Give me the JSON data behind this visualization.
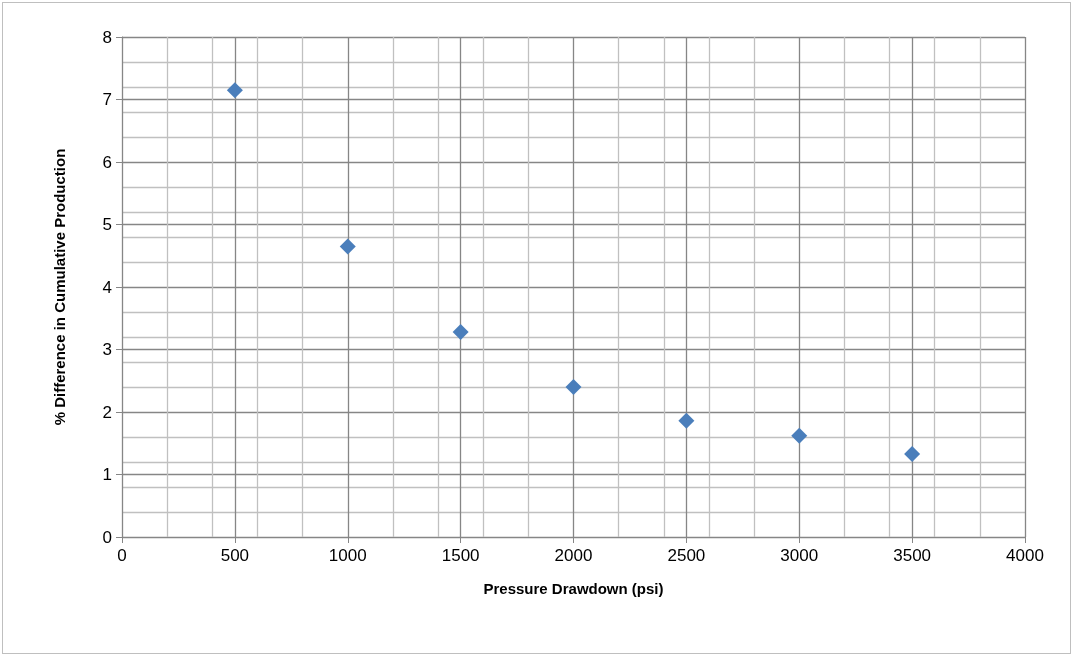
{
  "chart_data": {
    "type": "scatter",
    "xlabel": "Pressure Drawdown (psi)",
    "ylabel": "% Difference in Cumulative Production",
    "x": [
      500,
      1000,
      1500,
      2000,
      2500,
      3000,
      3500
    ],
    "series": [
      {
        "color": "#4a7ebb",
        "values": [
          7.15,
          4.65,
          3.28,
          2.4,
          1.86,
          1.62,
          1.33
        ]
      }
    ],
    "xlim": [
      0,
      4000
    ],
    "xticks": [
      0,
      500,
      1000,
      1500,
      2000,
      2500,
      3000,
      3500,
      4000
    ],
    "ylim": [
      0,
      8
    ],
    "yticks": [
      0,
      1,
      2,
      3,
      4,
      5,
      6,
      7,
      8
    ],
    "grid": true,
    "marker": "diamond"
  }
}
